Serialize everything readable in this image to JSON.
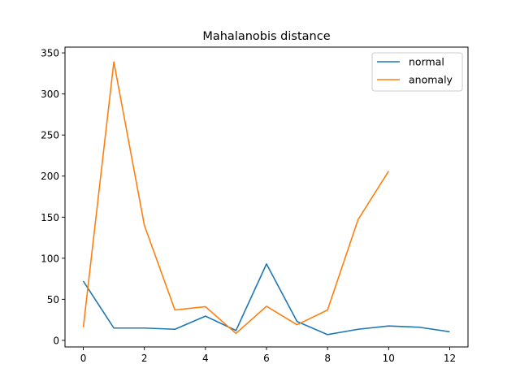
{
  "chart_data": {
    "type": "line",
    "title": "Mahalanobis distance",
    "xlabel": "",
    "ylabel": "",
    "xlim": [
      -0.6,
      12.6
    ],
    "ylim": [
      -8,
      357
    ],
    "xticks": [
      0,
      2,
      4,
      6,
      8,
      10,
      12
    ],
    "yticks": [
      0,
      50,
      100,
      150,
      200,
      250,
      300,
      350
    ],
    "grid": false,
    "legend_position": "top-right",
    "series": [
      {
        "name": "normal",
        "color": "#1f77b4",
        "x": [
          0,
          1,
          2,
          3,
          4,
          5,
          6,
          7,
          8,
          9,
          10,
          11,
          12
        ],
        "values": [
          72,
          15,
          15,
          13.5,
          29.5,
          12,
          93,
          23,
          7,
          13.5,
          17.5,
          16,
          10.5
        ]
      },
      {
        "name": "anomaly",
        "color": "#ff7f0e",
        "x": [
          0,
          1,
          2,
          3,
          4,
          5,
          6,
          7,
          8,
          9,
          10
        ],
        "values": [
          16,
          339,
          140,
          37,
          41,
          8.5,
          41.5,
          19,
          37,
          147,
          206
        ]
      }
    ]
  }
}
